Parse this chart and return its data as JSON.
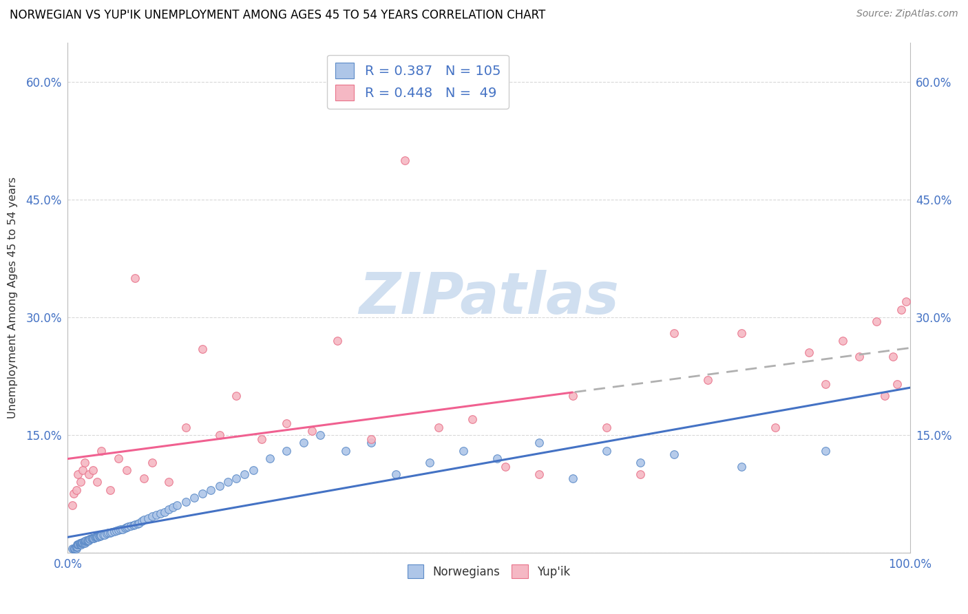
{
  "title": "NORWEGIAN VS YUP'IK UNEMPLOYMENT AMONG AGES 45 TO 54 YEARS CORRELATION CHART",
  "source": "Source: ZipAtlas.com",
  "ylabel": "Unemployment Among Ages 45 to 54 years",
  "xlim": [
    0.0,
    1.0
  ],
  "ylim": [
    0.0,
    0.65
  ],
  "xtick_positions": [
    0.0,
    0.1,
    0.2,
    0.3,
    0.4,
    0.5,
    0.6,
    0.7,
    0.8,
    0.9,
    1.0
  ],
  "ytick_positions": [
    0.0,
    0.15,
    0.3,
    0.45,
    0.6
  ],
  "ytick_labels": [
    "",
    "15.0%",
    "30.0%",
    "45.0%",
    "60.0%"
  ],
  "norwegian_R": 0.387,
  "norwegian_N": 105,
  "yupik_R": 0.448,
  "yupik_N": 49,
  "norwegian_scatter_face": "#aec6e8",
  "norwegian_scatter_edge": "#5b8ac7",
  "yupik_scatter_face": "#f5b8c4",
  "yupik_scatter_edge": "#e8728a",
  "norwegian_line_color": "#4472c4",
  "yupik_line_color": "#f06090",
  "dashed_line_color": "#b0b0b0",
  "grid_color": "#d8d8d8",
  "bg_color": "#ffffff",
  "watermark_text": "ZIPatlas",
  "watermark_color": "#d0dff0",
  "legend_text_color": "#4472c4",
  "title_color": "#000000",
  "source_color": "#808080",
  "norwegian_x": [
    0.005,
    0.007,
    0.008,
    0.009,
    0.01,
    0.01,
    0.01,
    0.011,
    0.011,
    0.012,
    0.012,
    0.013,
    0.013,
    0.014,
    0.014,
    0.015,
    0.015,
    0.016,
    0.016,
    0.017,
    0.017,
    0.018,
    0.018,
    0.019,
    0.019,
    0.02,
    0.02,
    0.021,
    0.021,
    0.022,
    0.022,
    0.023,
    0.023,
    0.024,
    0.025,
    0.026,
    0.027,
    0.028,
    0.029,
    0.03,
    0.031,
    0.032,
    0.033,
    0.034,
    0.035,
    0.036,
    0.037,
    0.038,
    0.039,
    0.04,
    0.042,
    0.044,
    0.046,
    0.048,
    0.05,
    0.052,
    0.055,
    0.058,
    0.06,
    0.063,
    0.065,
    0.068,
    0.07,
    0.072,
    0.075,
    0.078,
    0.08,
    0.083,
    0.085,
    0.088,
    0.09,
    0.095,
    0.1,
    0.105,
    0.11,
    0.115,
    0.12,
    0.125,
    0.13,
    0.14,
    0.15,
    0.16,
    0.17,
    0.18,
    0.19,
    0.2,
    0.21,
    0.22,
    0.24,
    0.26,
    0.28,
    0.3,
    0.33,
    0.36,
    0.39,
    0.43,
    0.47,
    0.51,
    0.56,
    0.6,
    0.64,
    0.68,
    0.72,
    0.8,
    0.9
  ],
  "norwegian_y": [
    0.005,
    0.005,
    0.005,
    0.005,
    0.005,
    0.007,
    0.008,
    0.008,
    0.01,
    0.01,
    0.01,
    0.01,
    0.01,
    0.01,
    0.012,
    0.01,
    0.012,
    0.01,
    0.012,
    0.012,
    0.013,
    0.012,
    0.013,
    0.013,
    0.014,
    0.012,
    0.015,
    0.013,
    0.015,
    0.015,
    0.016,
    0.015,
    0.016,
    0.016,
    0.016,
    0.017,
    0.017,
    0.018,
    0.018,
    0.018,
    0.018,
    0.019,
    0.02,
    0.02,
    0.02,
    0.02,
    0.021,
    0.021,
    0.022,
    0.022,
    0.023,
    0.023,
    0.024,
    0.025,
    0.025,
    0.026,
    0.027,
    0.028,
    0.029,
    0.03,
    0.03,
    0.031,
    0.032,
    0.033,
    0.034,
    0.035,
    0.036,
    0.037,
    0.038,
    0.04,
    0.042,
    0.044,
    0.046,
    0.048,
    0.05,
    0.052,
    0.055,
    0.058,
    0.06,
    0.065,
    0.07,
    0.075,
    0.08,
    0.085,
    0.09,
    0.095,
    0.1,
    0.105,
    0.12,
    0.13,
    0.14,
    0.15,
    0.13,
    0.14,
    0.1,
    0.115,
    0.13,
    0.12,
    0.14,
    0.095,
    0.13,
    0.115,
    0.125,
    0.11,
    0.13
  ],
  "yupik_x": [
    0.005,
    0.007,
    0.01,
    0.012,
    0.015,
    0.018,
    0.02,
    0.025,
    0.03,
    0.035,
    0.04,
    0.05,
    0.06,
    0.07,
    0.08,
    0.09,
    0.1,
    0.12,
    0.14,
    0.16,
    0.18,
    0.2,
    0.23,
    0.26,
    0.29,
    0.32,
    0.36,
    0.4,
    0.44,
    0.48,
    0.52,
    0.56,
    0.6,
    0.64,
    0.68,
    0.72,
    0.76,
    0.8,
    0.84,
    0.88,
    0.9,
    0.92,
    0.94,
    0.96,
    0.97,
    0.98,
    0.985,
    0.99,
    0.995
  ],
  "yupik_y": [
    0.06,
    0.075,
    0.08,
    0.1,
    0.09,
    0.105,
    0.115,
    0.1,
    0.105,
    0.09,
    0.13,
    0.08,
    0.12,
    0.105,
    0.35,
    0.095,
    0.115,
    0.09,
    0.16,
    0.26,
    0.15,
    0.2,
    0.145,
    0.165,
    0.155,
    0.27,
    0.145,
    0.5,
    0.16,
    0.17,
    0.11,
    0.1,
    0.2,
    0.16,
    0.1,
    0.28,
    0.22,
    0.28,
    0.16,
    0.255,
    0.215,
    0.27,
    0.25,
    0.295,
    0.2,
    0.25,
    0.215,
    0.31,
    0.32
  ],
  "yupik_line_split": 0.6
}
